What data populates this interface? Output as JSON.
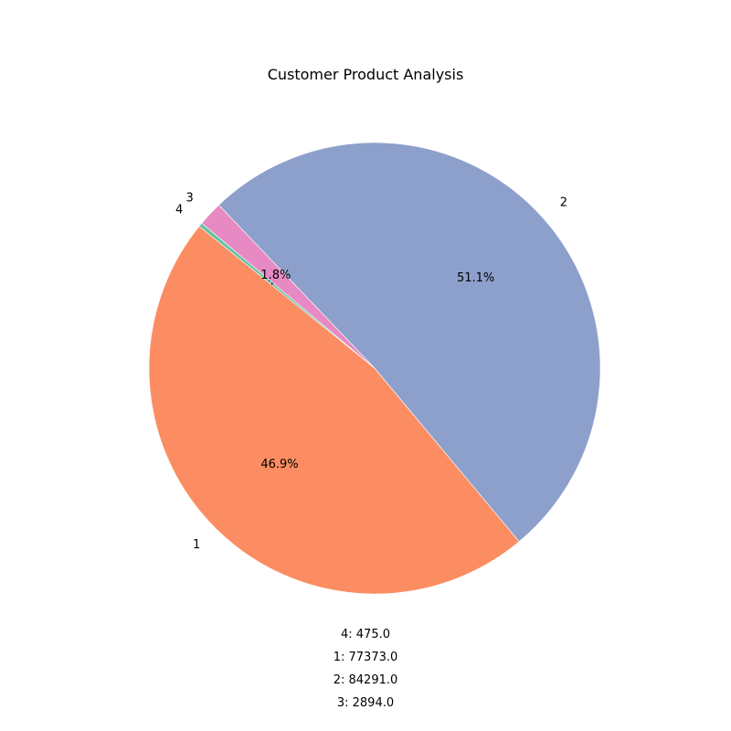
{
  "chart_data": {
    "type": "pie",
    "title": "Customer Product Analysis",
    "categories": [
      "4",
      "1",
      "2",
      "3"
    ],
    "values": [
      475.0,
      77373.0,
      84291.0,
      2894.0
    ],
    "percent_labels": [
      "0.3%",
      "46.9%",
      "51.1%",
      "1.8%"
    ],
    "colors": [
      "#66c2a5",
      "#fc8d62",
      "#8da0cb",
      "#e78ac3"
    ],
    "value_lines": [
      "4: 475.0",
      "1: 77373.0",
      "2: 84291.0",
      "3: 2894.0"
    ],
    "start_angle_deg": 140,
    "direction": "counterclockwise",
    "legend": "none"
  }
}
